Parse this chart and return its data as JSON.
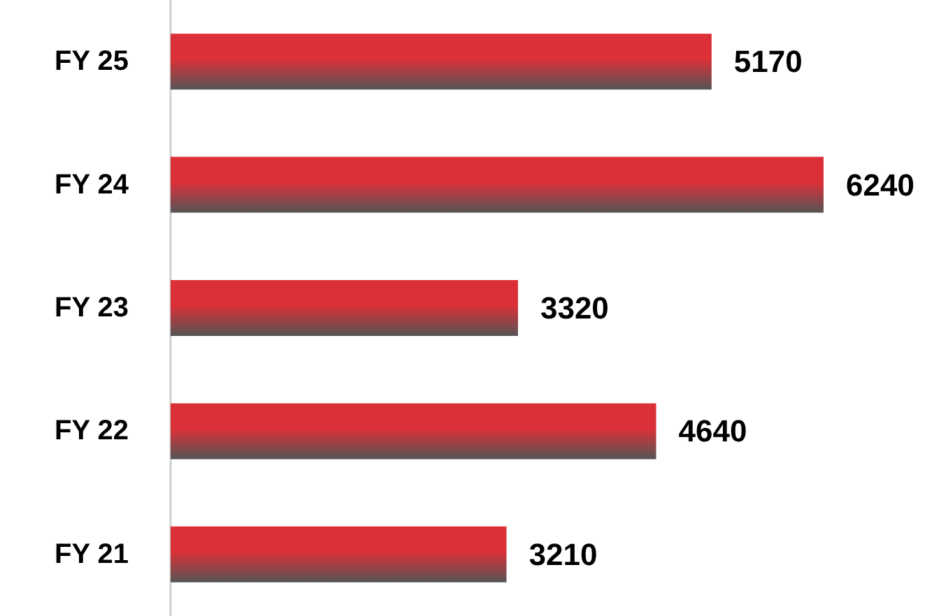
{
  "chart_data": {
    "type": "bar",
    "orientation": "horizontal",
    "categories": [
      "FY 25",
      "FY 24",
      "FY 23",
      "FY 22",
      "FY 21"
    ],
    "values": [
      5170,
      6240,
      3320,
      4640,
      3210
    ],
    "color": "#dc3038",
    "data_labels": true
  }
}
